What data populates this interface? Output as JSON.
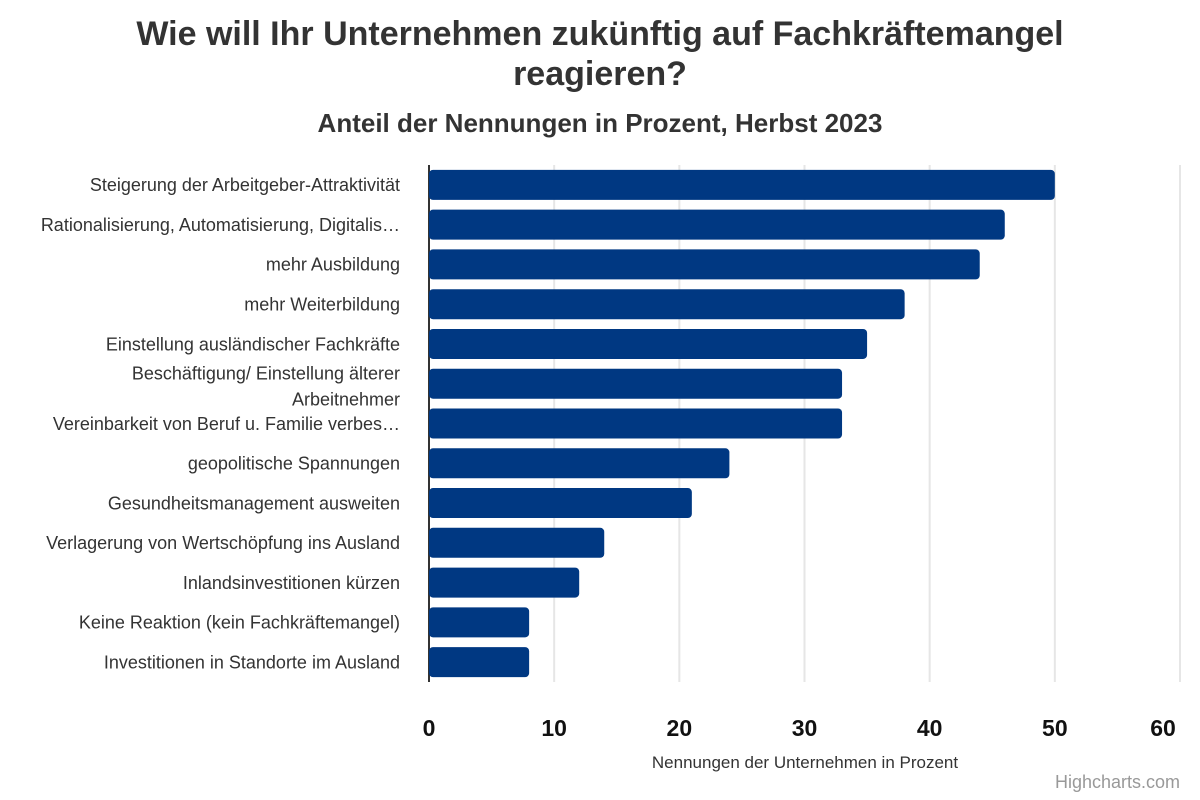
{
  "chart_data": {
    "type": "bar",
    "orientation": "horizontal",
    "title": "Wie will Ihr Unternehmen zukünftig auf Fachkräftemangel reagieren?",
    "subtitle": "Anteil der Nennungen in Prozent, Herbst 2023",
    "xlabel": "Nennungen der Unternehmen in Prozent",
    "ylabel": "",
    "xlim": [
      0,
      60
    ],
    "ticks": [
      "0",
      "10",
      "20",
      "30",
      "40",
      "50",
      "60"
    ],
    "grid": true,
    "bar_color": "#003882",
    "categories": [
      "Steigerung der Arbeitgeber-Attraktivität",
      "Rationalisierung, Automatisierung, Digitalis…",
      "mehr Ausbildung",
      "mehr Weiterbildung",
      "Einstellung ausländischer Fachkräfte",
      "Beschäftigung/ Einstellung älterer Arbeitnehmer",
      "Vereinbarkeit von Beruf u. Familie verbes…",
      "geopolitische Spannungen",
      "Gesundheitsmanagement ausweiten",
      "Verlagerung von Wertschöpfung ins Ausland",
      "Inlandsinvestitionen kürzen",
      "Keine Reaktion (kein Fachkräftemangel)",
      "Investitionen in Standorte im Ausland"
    ],
    "values": [
      50,
      46,
      44,
      38,
      35,
      33,
      33,
      24,
      21,
      14,
      12,
      8,
      8
    ]
  },
  "credit": "Highcharts.com"
}
